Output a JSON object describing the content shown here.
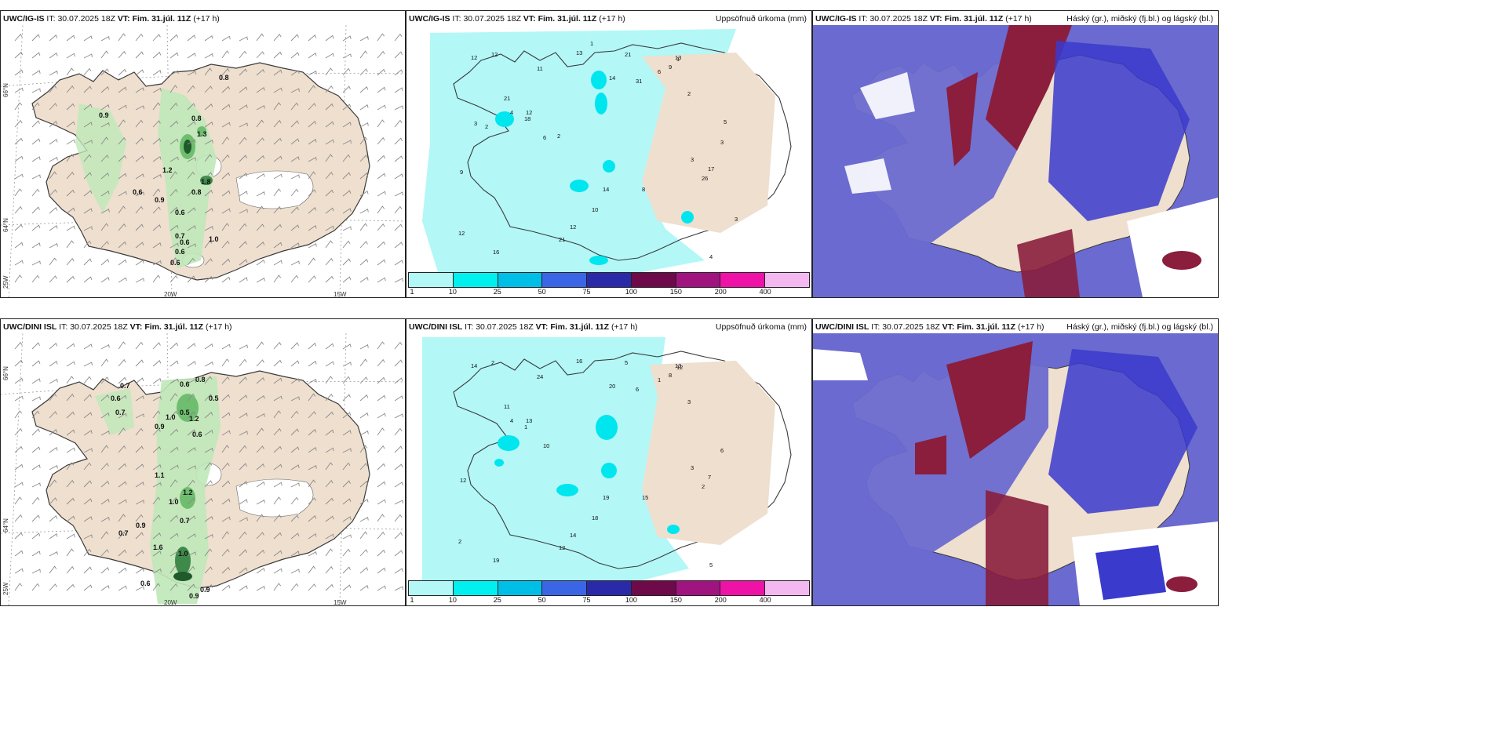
{
  "colors": {
    "land": "#eedfcf",
    "coast": "#3a3a3a",
    "wind": "#8a8a8a",
    "green_light": "#bfe8b8",
    "green_mid": "#6fbe6f",
    "green_dark": "#1f5a2a",
    "cyan_light": "#b3f7f7",
    "cyan_mid": "#00e6ee",
    "cloud_low": "#6a6ad0",
    "cloud_mid": "#3a3acc",
    "cloud_high": "#8a1e3c",
    "cloud_edge": "#c8d8ff"
  },
  "colorbar": {
    "colors": [
      "#b3f7f7",
      "#00f0f0",
      "#00bfe6",
      "#3a66e6",
      "#2a2aa8",
      "#6e0a4a",
      "#a01480",
      "#ee12a6",
      "#f4b8f0"
    ],
    "ticks": [
      "1",
      "10",
      "25",
      "50",
      "75",
      "100",
      "150",
      "200",
      "400"
    ]
  },
  "rows": [
    {
      "model": "UWC/IG-IS",
      "it_label": "IT:",
      "it_value": "30.07.2025 18Z",
      "vt_label": "VT:",
      "vt_value": "Fim. 31.júl. 11Z",
      "lead": "(+17 h)",
      "precip_title": "Uppsöfnuð úrkoma (mm)",
      "cloud_title": "Háský (gr.), miðský (fj.bl.) og lágský (bl.)",
      "axis": {
        "lat_66": "66°N",
        "lat_64": "64°N",
        "lon_25": "25W",
        "lon_20": "20W",
        "lon_15": "15W"
      },
      "wind_values": [
        "0.8",
        "0.9",
        "0.8",
        "1.3",
        "1.2",
        "1.8",
        "0.6",
        "0.9",
        "0.8",
        "0.6",
        "0.7",
        "0.6",
        "1.0",
        "0.6",
        "0.6"
      ],
      "precip_values": [
        "1",
        "2",
        "4",
        "4",
        "3",
        "6",
        "9",
        "12",
        "13",
        "16",
        "21",
        "14",
        "12",
        "11",
        "8",
        "21",
        "12",
        "13",
        "10",
        "14",
        "17",
        "21",
        "31",
        "12",
        "6",
        "9",
        "12",
        "3",
        "26",
        "18",
        "5",
        "3",
        "2",
        "3",
        "2",
        "1"
      ]
    },
    {
      "model": "UWC/DINI ISL",
      "it_label": "IT:",
      "it_value": "30.07.2025 18Z",
      "vt_label": "VT:",
      "vt_value": "Fim. 31.júl. 11Z",
      "lead": "(+17 h)",
      "precip_title": "Uppsöfnuð úrkoma (mm)",
      "cloud_title": "Háský (gr.), miðský (fj.bl.) og lágský (bl.)",
      "axis": {
        "lat_66": "66°N",
        "lat_64": "64°N",
        "lon_25": "25W",
        "lon_20": "20W",
        "lon_15": "15W"
      },
      "wind_values": [
        "0.7",
        "0.6",
        "0.8",
        "0.6",
        "0.7",
        "0.5",
        "1.0",
        "0.9",
        "0.5",
        "1.2",
        "0.6",
        "1.1",
        "1.2",
        "1.0",
        "0.7",
        "0.9",
        "0.7",
        "1.6",
        "1.0",
        "0.9",
        "0.6",
        "0.9"
      ],
      "precip_values": [
        "12",
        "3",
        "4",
        "5",
        "6",
        "10",
        "12",
        "14",
        "16",
        "19",
        "11",
        "20",
        "13",
        "24",
        "15",
        "12",
        "14",
        "13",
        "18",
        "19",
        "7",
        "5",
        "6",
        "2",
        "1",
        "8",
        "2",
        "3",
        "2",
        "1"
      ]
    }
  ]
}
